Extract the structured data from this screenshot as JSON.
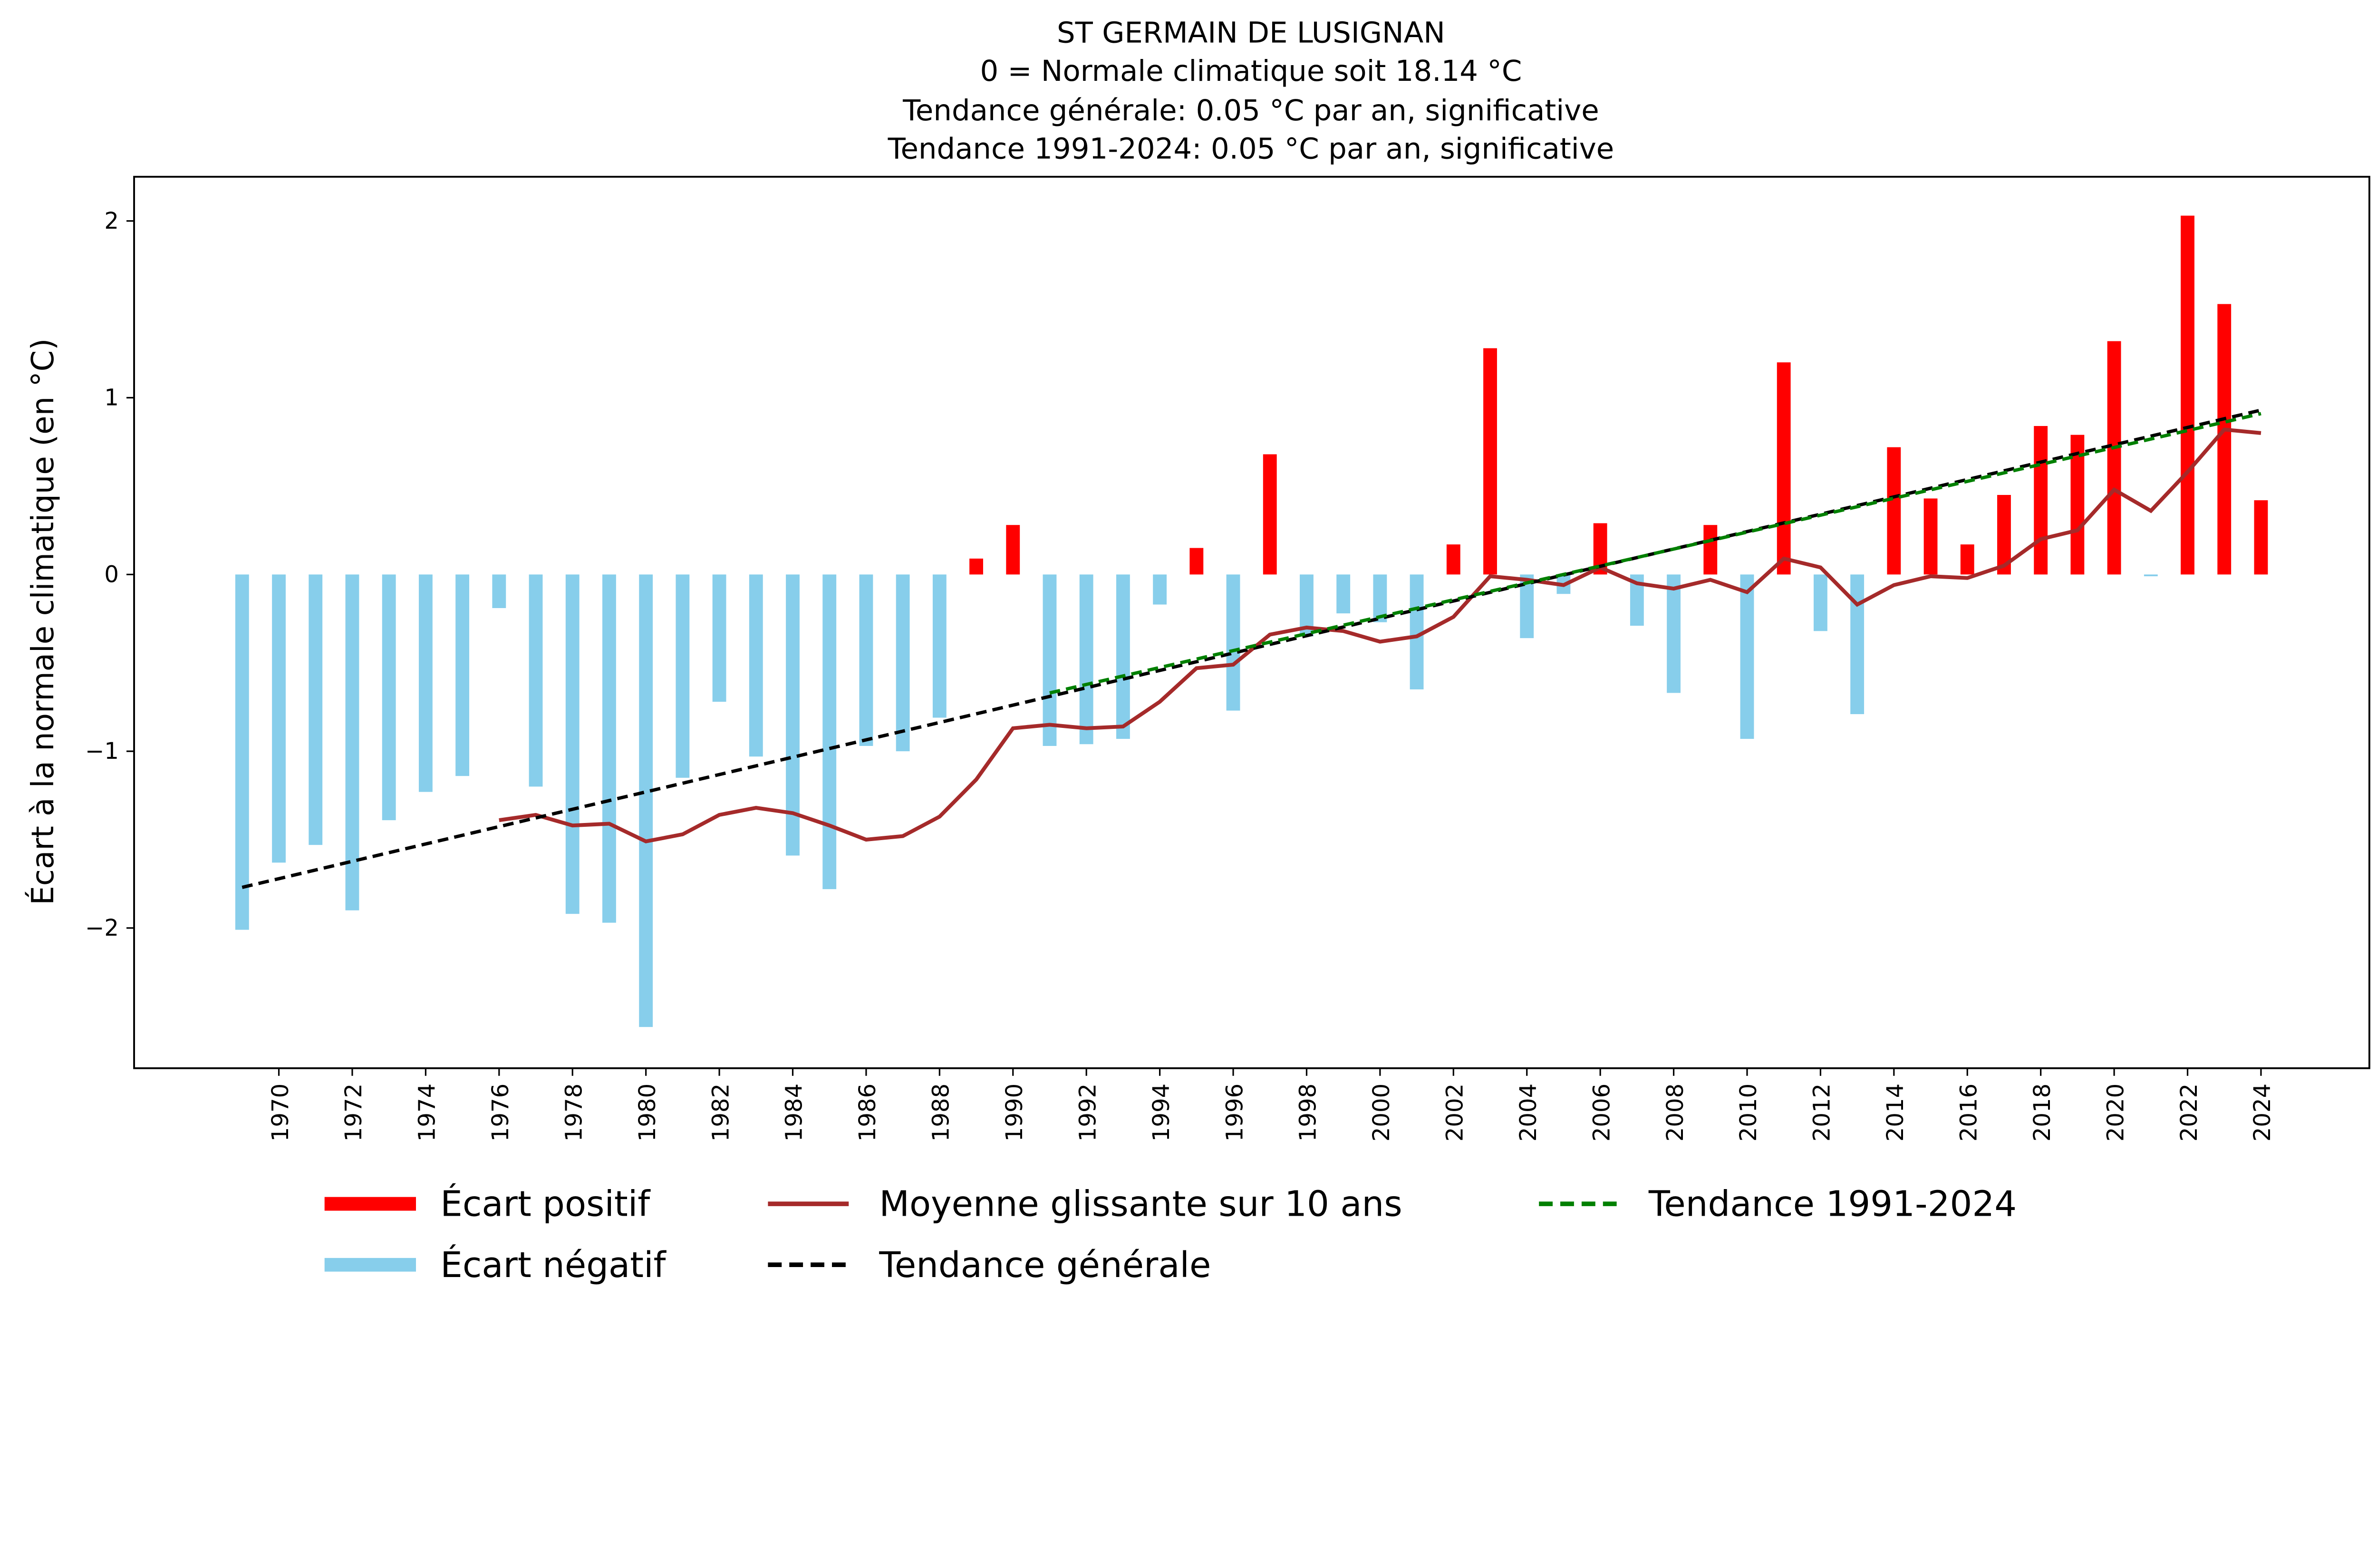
{
  "chart_data": {
    "type": "bar",
    "title_lines": [
      "ST GERMAIN DE LUSIGNAN",
      "0 = Normale climatique soit 18.14 °C",
      "Tendance générale: 0.05 °C par an, significative",
      "Tendance 1991-2024: 0.05 °C par an, significative"
    ],
    "xlabel": "",
    "ylabel": "Écart à la normale climatique (en °C)",
    "ylim": [
      -2.8,
      2.25
    ],
    "xlim": [
      1967.5,
      2025.5
    ],
    "yticks": [
      -2,
      -1,
      0,
      1,
      2
    ],
    "ytick_labels": [
      "−2",
      "−1",
      "0",
      "1",
      "2"
    ],
    "xticks": [
      1970,
      1972,
      1974,
      1976,
      1978,
      1980,
      1982,
      1984,
      1986,
      1988,
      1990,
      1992,
      1994,
      1996,
      1998,
      2000,
      2002,
      2004,
      2006,
      2008,
      2010,
      2012,
      2014,
      2016,
      2018,
      2020,
      2022,
      2024
    ],
    "grid": false,
    "legend_placement": "bottom",
    "colors": {
      "positive": "#ff0000",
      "negative": "#87ceeb",
      "moving_average": "#a52a2a",
      "trend_general": "#000000",
      "trend_recent": "#008000"
    },
    "years": [
      1969,
      1970,
      1971,
      1972,
      1973,
      1974,
      1975,
      1976,
      1977,
      1978,
      1979,
      1980,
      1981,
      1982,
      1983,
      1984,
      1985,
      1986,
      1987,
      1988,
      1989,
      1990,
      1991,
      1992,
      1993,
      1994,
      1995,
      1996,
      1997,
      1998,
      1999,
      2000,
      2001,
      2002,
      2003,
      2004,
      2005,
      2006,
      2007,
      2008,
      2009,
      2010,
      2011,
      2012,
      2013,
      2014,
      2015,
      2016,
      2017,
      2018,
      2019,
      2020,
      2021,
      2022,
      2023,
      2024
    ],
    "anomalies": [
      -2.01,
      -1.63,
      -1.53,
      -1.9,
      -1.39,
      -1.23,
      -1.14,
      -0.19,
      -1.2,
      -1.92,
      -1.97,
      -2.56,
      -1.15,
      -0.72,
      -1.03,
      -1.59,
      -1.78,
      -0.97,
      -1.0,
      -0.81,
      0.09,
      0.28,
      -0.97,
      -0.96,
      -0.93,
      -0.17,
      0.15,
      -0.77,
      0.68,
      -0.35,
      -0.22,
      -0.27,
      -0.65,
      0.17,
      1.28,
      -0.36,
      -0.11,
      0.29,
      -0.29,
      -0.67,
      0.28,
      -0.93,
      1.2,
      -0.32,
      -0.79,
      0.72,
      0.43,
      0.17,
      0.45,
      0.84,
      0.79,
      1.32,
      -0.01,
      2.03,
      1.53,
      0.42
    ],
    "moving_average": {
      "years": [
        1976,
        1977,
        1978,
        1979,
        1980,
        1981,
        1982,
        1983,
        1984,
        1985,
        1986,
        1987,
        1988,
        1989,
        1990,
        1991,
        1992,
        1993,
        1994,
        1995,
        1996,
        1997,
        1998,
        1999,
        2000,
        2001,
        2002,
        2003,
        2004,
        2005,
        2006,
        2007,
        2008,
        2009,
        2010,
        2011,
        2012,
        2013,
        2014,
        2015,
        2016,
        2017,
        2018,
        2019,
        2020,
        2021,
        2022,
        2023,
        2024
      ],
      "values": [
        -1.39,
        -1.36,
        -1.42,
        -1.41,
        -1.51,
        -1.47,
        -1.36,
        -1.32,
        -1.35,
        -1.42,
        -1.5,
        -1.48,
        -1.37,
        -1.16,
        -0.87,
        -0.85,
        -0.87,
        -0.86,
        -0.72,
        -0.53,
        -0.51,
        -0.34,
        -0.3,
        -0.32,
        -0.38,
        -0.35,
        -0.24,
        -0.01,
        -0.03,
        -0.06,
        0.04,
        -0.05,
        -0.08,
        -0.03,
        -0.1,
        0.09,
        0.04,
        -0.17,
        -0.06,
        -0.01,
        -0.02,
        0.05,
        0.2,
        0.25,
        0.48,
        0.36,
        0.58,
        0.82,
        0.8
      ]
    },
    "trend_general": {
      "x": [
        1969,
        2024
      ],
      "y": [
        -1.77,
        0.93
      ]
    },
    "trend_recent": {
      "x": [
        1991,
        2024
      ],
      "y": [
        -0.67,
        0.91
      ]
    },
    "legend": {
      "positive": "Écart positif",
      "negative": "Écart négatif",
      "moving_average": "Moyenne glissante sur 10 ans",
      "trend_general": "Tendance générale",
      "trend_recent": "Tendance 1991-2024"
    }
  }
}
